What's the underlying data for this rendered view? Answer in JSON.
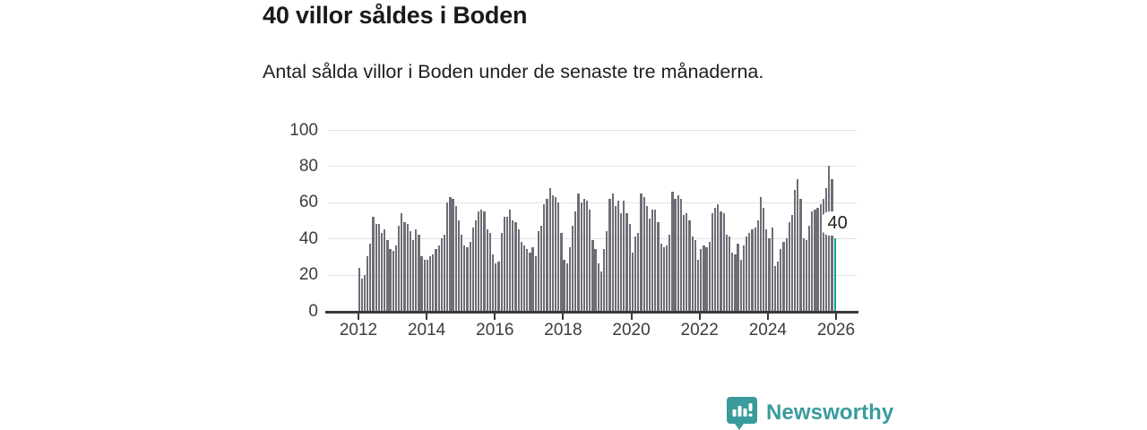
{
  "title": "40 villor såldes i Boden",
  "subtitle": "Antal sålda villor i Boden under de senaste tre månaderna.",
  "branding": {
    "name": "Newsworthy",
    "color": "#3a9b9c",
    "icon": "bar-chart-speech-bubble"
  },
  "chart_data": {
    "type": "bar",
    "title": "40 villor såldes i Boden",
    "subtitle": "Antal sålda villor i Boden under de senaste tre månaderna.",
    "frequency": "monthly",
    "start": "2012-01",
    "end": "2025-12",
    "values": [
      24,
      18,
      20,
      30,
      37,
      52,
      48,
      48,
      43,
      45,
      39,
      34,
      33,
      36,
      47,
      54,
      49,
      48,
      44,
      39,
      45,
      42,
      30,
      28,
      28,
      30,
      31,
      34,
      36,
      40,
      42,
      60,
      63,
      62,
      58,
      50,
      42,
      36,
      35,
      38,
      46,
      50,
      55,
      56,
      55,
      45,
      43,
      31,
      26,
      27,
      43,
      52,
      52,
      56,
      50,
      49,
      45,
      38,
      36,
      34,
      32,
      35,
      30,
      44,
      47,
      59,
      62,
      68,
      64,
      63,
      60,
      43,
      28,
      26,
      35,
      47,
      55,
      65,
      60,
      62,
      61,
      56,
      39,
      34,
      26,
      22,
      34,
      44,
      62,
      65,
      58,
      61,
      54,
      61,
      54,
      48,
      32,
      41,
      43,
      65,
      63,
      58,
      51,
      56,
      56,
      49,
      37,
      35,
      36,
      42,
      66,
      62,
      64,
      62,
      53,
      54,
      50,
      41,
      39,
      28,
      34,
      36,
      35,
      38,
      54,
      57,
      59,
      55,
      54,
      42,
      41,
      32,
      31,
      37,
      28,
      36,
      41,
      43,
      45,
      46,
      50,
      63,
      57,
      45,
      40,
      46,
      25,
      27,
      34,
      38,
      40,
      49,
      53,
      67,
      73,
      62,
      40,
      39,
      47,
      55,
      56,
      57,
      59,
      62,
      68,
      80,
      73,
      40
    ],
    "highlight": {
      "index_from_end": 1,
      "value": 40,
      "label": "40"
    },
    "ylim": [
      0,
      100
    ],
    "yticks": [
      "0",
      "20",
      "40",
      "60",
      "80",
      "100"
    ],
    "xticks": [
      "2012",
      "2014",
      "2016",
      "2018",
      "2020",
      "2022",
      "2024",
      "2026"
    ],
    "grid": "horizontal",
    "legend": "none",
    "colors": {
      "bar": "#6e6e77",
      "highlight": "#0aa3a0",
      "grid": "#e2e2e2",
      "axis": "#3a3a3a",
      "tick_text": "#3d3d3d"
    }
  }
}
